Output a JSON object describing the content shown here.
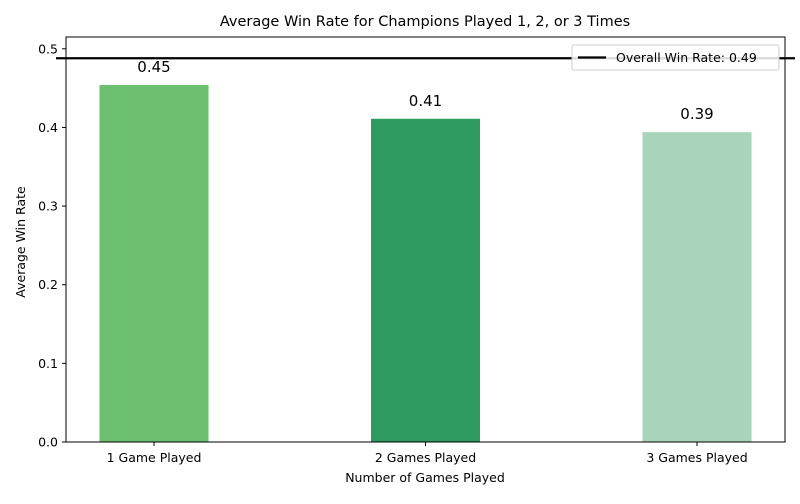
{
  "chart_data": {
    "type": "bar",
    "title": "Average Win Rate for Champions Played 1, 2, or 3 Times",
    "xlabel": "Number of Games Played",
    "ylabel": "Average Win Rate",
    "categories": [
      "1 Game Played",
      "2 Games Played",
      "3 Games Played"
    ],
    "values": [
      0.454,
      0.411,
      0.394
    ],
    "data_labels": [
      "0.45",
      "0.41",
      "0.39"
    ],
    "bar_colors": [
      "#6cc070",
      "#2e9a5f",
      "#a9d4b9"
    ],
    "ylim": [
      0,
      0.515
    ],
    "yticks": [
      0.0,
      0.1,
      0.2,
      0.3,
      0.4,
      0.5
    ],
    "ytick_labels": [
      "0.0",
      "0.1",
      "0.2",
      "0.3",
      "0.4",
      "0.5"
    ],
    "reference_line": {
      "value": 0.488,
      "label": "Overall Win Rate: 0.49",
      "color": "#000000"
    },
    "grid": false,
    "legend": {
      "position": "top-right",
      "entries": [
        "Overall Win Rate: 0.49"
      ]
    }
  }
}
